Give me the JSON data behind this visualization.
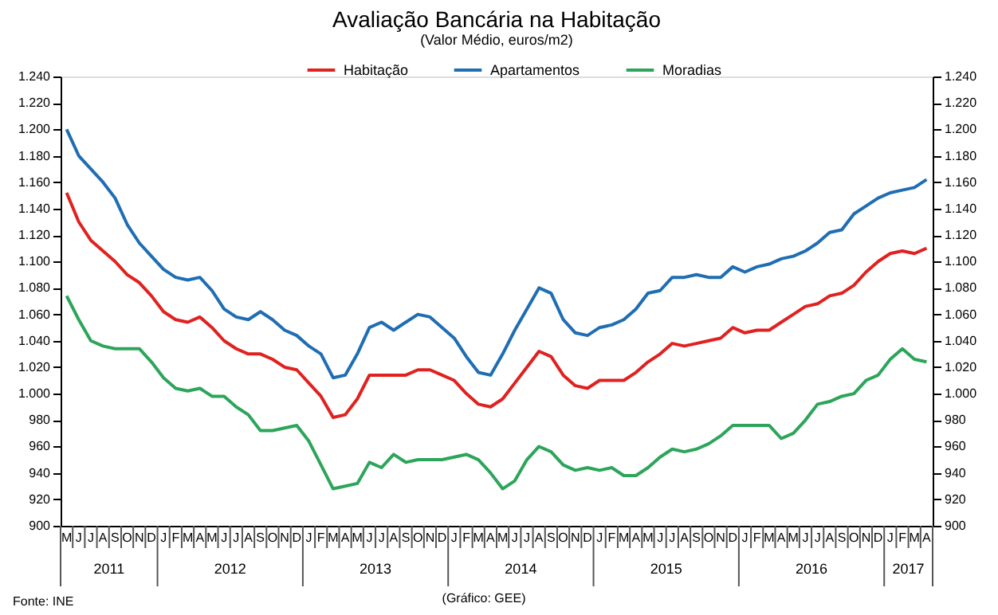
{
  "chart_data": {
    "type": "line",
    "title": "Avaliação Bancária na Habitação",
    "subtitle": "(Valor Médio, euros/m2)",
    "categories": [
      "M",
      "J",
      "J",
      "A",
      "S",
      "O",
      "N",
      "D",
      "J",
      "F",
      "M",
      "A",
      "M",
      "J",
      "J",
      "A",
      "S",
      "O",
      "N",
      "D",
      "J",
      "F",
      "M",
      "A",
      "M",
      "J",
      "J",
      "A",
      "S",
      "O",
      "N",
      "D",
      "J",
      "F",
      "M",
      "A",
      "M",
      "J",
      "J",
      "A",
      "S",
      "O",
      "N",
      "D",
      "J",
      "F",
      "M",
      "A",
      "M",
      "J",
      "J",
      "A",
      "S",
      "O",
      "N",
      "D",
      "J",
      "F",
      "M",
      "A",
      "M",
      "J",
      "J",
      "A",
      "S",
      "O",
      "N",
      "D",
      "J",
      "F",
      "M",
      "A"
    ],
    "series": [
      {
        "name": "Habitação",
        "color": "#e0211f",
        "values": [
          1152,
          1130,
          1116,
          1108,
          1100,
          1090,
          1084,
          1074,
          1062,
          1056,
          1054,
          1058,
          1050,
          1040,
          1034,
          1030,
          1030,
          1026,
          1020,
          1018,
          1008,
          998,
          982,
          984,
          996,
          1014,
          1014,
          1014,
          1014,
          1018,
          1018,
          1014,
          1010,
          1000,
          992,
          990,
          996,
          1008,
          1020,
          1032,
          1028,
          1014,
          1006,
          1004,
          1010,
          1010,
          1010,
          1016,
          1024,
          1030,
          1038,
          1036,
          1038,
          1040,
          1042,
          1050,
          1046,
          1048,
          1048,
          1054,
          1060,
          1066,
          1068,
          1074,
          1076,
          1082,
          1092,
          1100,
          1106,
          1108,
          1106,
          1110
        ]
      },
      {
        "name": "Apartamentos",
        "color": "#1f6db3",
        "values": [
          1200,
          1180,
          1170,
          1160,
          1148,
          1128,
          1114,
          1104,
          1094,
          1088,
          1086,
          1088,
          1078,
          1064,
          1058,
          1056,
          1062,
          1056,
          1048,
          1044,
          1036,
          1030,
          1012,
          1014,
          1030,
          1050,
          1054,
          1048,
          1054,
          1060,
          1058,
          1050,
          1042,
          1028,
          1016,
          1014,
          1030,
          1048,
          1064,
          1080,
          1076,
          1056,
          1046,
          1044,
          1050,
          1052,
          1056,
          1064,
          1076,
          1078,
          1088,
          1088,
          1090,
          1088,
          1088,
          1096,
          1092,
          1096,
          1098,
          1102,
          1104,
          1108,
          1114,
          1122,
          1124,
          1136,
          1142,
          1148,
          1152,
          1154,
          1156,
          1162
        ]
      },
      {
        "name": "Moradias",
        "color": "#2ca55a",
        "values": [
          1074,
          1056,
          1040,
          1036,
          1034,
          1034,
          1034,
          1024,
          1012,
          1004,
          1002,
          1004,
          998,
          998,
          990,
          984,
          972,
          972,
          974,
          976,
          964,
          946,
          928,
          930,
          932,
          948,
          944,
          954,
          948,
          950,
          950,
          950,
          952,
          954,
          950,
          940,
          928,
          934,
          950,
          960,
          956,
          946,
          942,
          944,
          942,
          944,
          938,
          938,
          944,
          952,
          958,
          956,
          958,
          962,
          968,
          976,
          976,
          976,
          976,
          966,
          970,
          980,
          992,
          994,
          998,
          1000,
          1010,
          1014,
          1026,
          1034,
          1026,
          1024
        ]
      }
    ],
    "ylim": [
      900,
      1240
    ],
    "yticks": [
      {
        "value": 900,
        "label": "900"
      },
      {
        "value": 920,
        "label": "920"
      },
      {
        "value": 940,
        "label": "940"
      },
      {
        "value": 960,
        "label": "960"
      },
      {
        "value": 980,
        "label": "980"
      },
      {
        "value": 1000,
        "label": "1.000"
      },
      {
        "value": 1020,
        "label": "1.020"
      },
      {
        "value": 1040,
        "label": "1.040"
      },
      {
        "value": 1060,
        "label": "1.060"
      },
      {
        "value": 1080,
        "label": "1.080"
      },
      {
        "value": 1100,
        "label": "1.100"
      },
      {
        "value": 1120,
        "label": "1.120"
      },
      {
        "value": 1140,
        "label": "1.140"
      },
      {
        "value": 1160,
        "label": "1.160"
      },
      {
        "value": 1180,
        "label": "1.180"
      },
      {
        "value": 1200,
        "label": "1.200"
      },
      {
        "value": 1220,
        "label": "1.220"
      },
      {
        "value": 1240,
        "label": "1.240"
      }
    ],
    "y2lim": [
      900,
      1240
    ],
    "y2ticks": [
      {
        "value": 900,
        "label": "900"
      },
      {
        "value": 920,
        "label": "920"
      },
      {
        "value": 940,
        "label": "940"
      },
      {
        "value": 960,
        "label": "960"
      },
      {
        "value": 980,
        "label": "980"
      },
      {
        "value": 1000,
        "label": "1.000"
      },
      {
        "value": 1020,
        "label": "1.020"
      },
      {
        "value": 1040,
        "label": "1.040"
      },
      {
        "value": 1060,
        "label": "1.060"
      },
      {
        "value": 1080,
        "label": "1.080"
      },
      {
        "value": 1100,
        "label": "1.100"
      },
      {
        "value": 1120,
        "label": "1.120"
      },
      {
        "value": 1140,
        "label": "1.140"
      },
      {
        "value": 1160,
        "label": "1.160"
      },
      {
        "value": 1180,
        "label": "1.180"
      },
      {
        "value": 1200,
        "label": "1.200"
      },
      {
        "value": 1220,
        "label": "1.220"
      },
      {
        "value": 1240,
        "label": "1.240"
      }
    ],
    "grid": false,
    "legend": "top",
    "line_style": "solid",
    "annotations": [
      "2011",
      "2012",
      "2013",
      "2014",
      "2015",
      "2016",
      "2017",
      "Fonte: INE",
      "(Gráfico: GEE)"
    ]
  }
}
